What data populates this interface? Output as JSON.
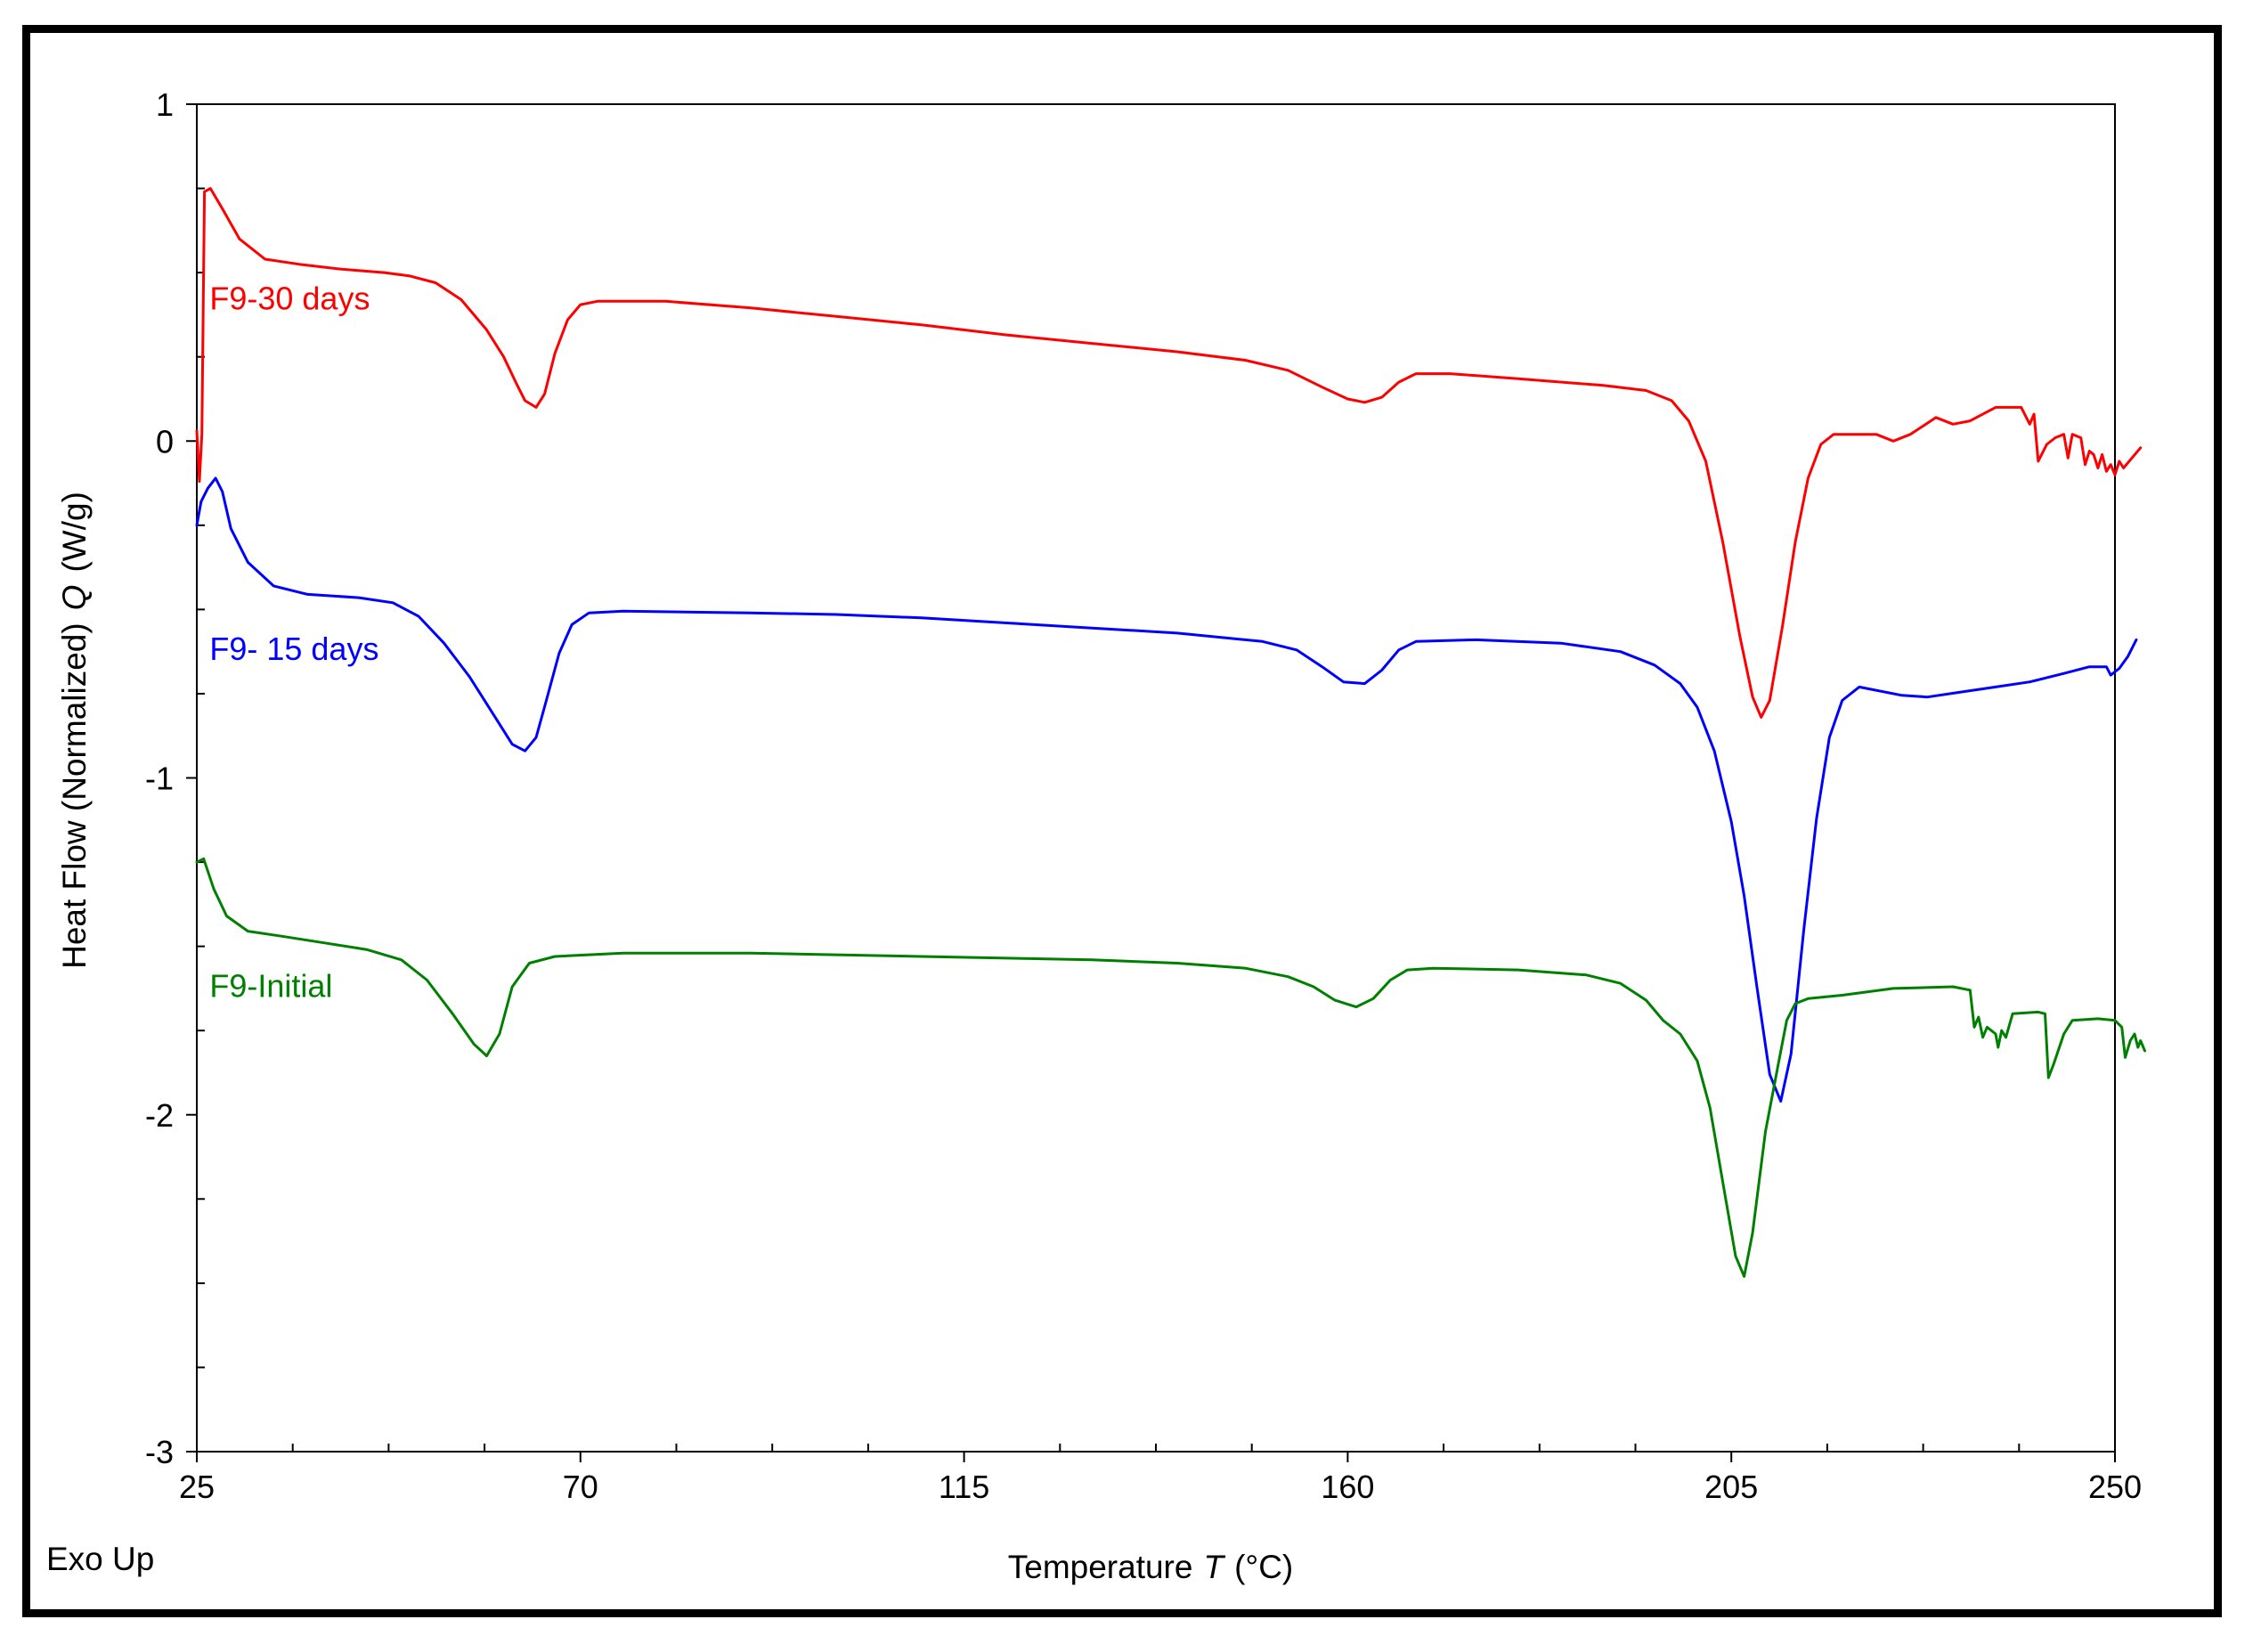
{
  "chart_data": {
    "type": "line",
    "xlabel": "Temperature",
    "xlabel_symbol": "T",
    "xlabel_unit": "(°C)",
    "ylabel": "Heat Flow (Normalized)",
    "ylabel_symbol": "Q",
    "ylabel_unit": "(W/g)",
    "corner_note": "Exo Up",
    "xlim": [
      25,
      250
    ],
    "ylim": [
      -3,
      1
    ],
    "xticks": [
      25,
      70,
      115,
      160,
      205,
      250
    ],
    "xtick_labels": [
      "25",
      "70",
      "115",
      "160",
      "205",
      "250"
    ],
    "yticks": [
      1,
      0,
      -1,
      -2,
      -3
    ],
    "ytick_labels": [
      "1",
      "0",
      "-1",
      "-2",
      "-3"
    ],
    "x_minor_step": 11.25,
    "y_minor_step": 0.25,
    "grid": false,
    "legend": "inline labels at left",
    "series": [
      {
        "name": "F9-30 days",
        "color": "#ff0000",
        "label_anchor": [
          26.5,
          0.39
        ],
        "points": [
          [
            25,
            0.03
          ],
          [
            25.3,
            -0.12
          ],
          [
            25.6,
            0.02
          ],
          [
            25.9,
            0.74
          ],
          [
            26.6,
            0.75
          ],
          [
            28,
            0.69
          ],
          [
            30,
            0.6
          ],
          [
            33,
            0.54
          ],
          [
            37,
            0.525
          ],
          [
            42,
            0.51
          ],
          [
            47,
            0.5
          ],
          [
            50,
            0.49
          ],
          [
            53,
            0.47
          ],
          [
            56,
            0.42
          ],
          [
            59,
            0.33
          ],
          [
            61,
            0.25
          ],
          [
            62.5,
            0.17
          ],
          [
            63.5,
            0.12
          ],
          [
            64.8,
            0.1
          ],
          [
            65.8,
            0.14
          ],
          [
            67,
            0.26
          ],
          [
            68.5,
            0.36
          ],
          [
            70,
            0.405
          ],
          [
            72,
            0.415
          ],
          [
            80,
            0.415
          ],
          [
            90,
            0.395
          ],
          [
            100,
            0.37
          ],
          [
            110,
            0.345
          ],
          [
            120,
            0.315
          ],
          [
            130,
            0.29
          ],
          [
            140,
            0.265
          ],
          [
            148,
            0.24
          ],
          [
            153,
            0.21
          ],
          [
            157,
            0.16
          ],
          [
            160,
            0.125
          ],
          [
            162,
            0.115
          ],
          [
            164,
            0.13
          ],
          [
            166,
            0.175
          ],
          [
            168,
            0.2
          ],
          [
            172,
            0.2
          ],
          [
            180,
            0.185
          ],
          [
            190,
            0.165
          ],
          [
            195,
            0.15
          ],
          [
            198,
            0.12
          ],
          [
            200,
            0.06
          ],
          [
            202,
            -0.06
          ],
          [
            204,
            -0.3
          ],
          [
            206,
            -0.58
          ],
          [
            207.5,
            -0.76
          ],
          [
            208.5,
            -0.82
          ],
          [
            209.5,
            -0.77
          ],
          [
            211,
            -0.55
          ],
          [
            212.5,
            -0.3
          ],
          [
            214,
            -0.11
          ],
          [
            215.5,
            -0.01
          ],
          [
            217,
            0.02
          ],
          [
            222,
            0.02
          ],
          [
            224,
            0.0
          ],
          [
            226,
            0.02
          ],
          [
            229,
            0.07
          ],
          [
            231,
            0.05
          ],
          [
            233,
            0.06
          ],
          [
            236,
            0.1
          ],
          [
            239,
            0.1
          ],
          [
            240,
            0.05
          ],
          [
            240.5,
            0.08
          ],
          [
            241,
            -0.06
          ],
          [
            242,
            -0.01
          ],
          [
            243,
            0.01
          ],
          [
            244,
            0.02
          ],
          [
            244.5,
            -0.05
          ],
          [
            245,
            0.02
          ],
          [
            246,
            0.01
          ],
          [
            246.5,
            -0.07
          ],
          [
            247,
            -0.03
          ],
          [
            247.5,
            -0.04
          ],
          [
            248,
            -0.08
          ],
          [
            248.5,
            -0.04
          ],
          [
            249,
            -0.09
          ],
          [
            249.5,
            -0.07
          ],
          [
            250,
            -0.1
          ],
          [
            250.5,
            -0.06
          ],
          [
            251,
            -0.08
          ],
          [
            252,
            -0.05
          ],
          [
            253,
            -0.02
          ]
        ]
      },
      {
        "name": "F9- 15 days",
        "color": "#0000ff",
        "label_anchor": [
          26.5,
          -0.65
        ],
        "points": [
          [
            25,
            -0.25
          ],
          [
            25.5,
            -0.18
          ],
          [
            26.3,
            -0.14
          ],
          [
            27.2,
            -0.11
          ],
          [
            28,
            -0.15
          ],
          [
            29,
            -0.26
          ],
          [
            31,
            -0.36
          ],
          [
            34,
            -0.43
          ],
          [
            38,
            -0.455
          ],
          [
            44,
            -0.465
          ],
          [
            48,
            -0.48
          ],
          [
            51,
            -0.52
          ],
          [
            54,
            -0.6
          ],
          [
            57,
            -0.7
          ],
          [
            60,
            -0.82
          ],
          [
            62,
            -0.9
          ],
          [
            63.5,
            -0.92
          ],
          [
            64.8,
            -0.88
          ],
          [
            66,
            -0.77
          ],
          [
            67.5,
            -0.63
          ],
          [
            69,
            -0.545
          ],
          [
            71,
            -0.51
          ],
          [
            75,
            -0.505
          ],
          [
            90,
            -0.51
          ],
          [
            100,
            -0.515
          ],
          [
            110,
            -0.525
          ],
          [
            120,
            -0.54
          ],
          [
            130,
            -0.555
          ],
          [
            140,
            -0.57
          ],
          [
            150,
            -0.595
          ],
          [
            154,
            -0.62
          ],
          [
            157,
            -0.67
          ],
          [
            159.5,
            -0.715
          ],
          [
            162,
            -0.72
          ],
          [
            164,
            -0.68
          ],
          [
            166,
            -0.62
          ],
          [
            168,
            -0.595
          ],
          [
            175,
            -0.59
          ],
          [
            185,
            -0.6
          ],
          [
            192,
            -0.625
          ],
          [
            196,
            -0.665
          ],
          [
            199,
            -0.72
          ],
          [
            201,
            -0.79
          ],
          [
            203,
            -0.92
          ],
          [
            205,
            -1.13
          ],
          [
            206.5,
            -1.35
          ],
          [
            208,
            -1.62
          ],
          [
            209.5,
            -1.88
          ],
          [
            210.8,
            -1.96
          ],
          [
            212,
            -1.82
          ],
          [
            213.5,
            -1.45
          ],
          [
            215,
            -1.12
          ],
          [
            216.5,
            -0.88
          ],
          [
            218,
            -0.77
          ],
          [
            220,
            -0.73
          ],
          [
            225,
            -0.755
          ],
          [
            228,
            -0.76
          ],
          [
            232,
            -0.745
          ],
          [
            236,
            -0.73
          ],
          [
            240,
            -0.715
          ],
          [
            244,
            -0.69
          ],
          [
            247,
            -0.67
          ],
          [
            249,
            -0.67
          ],
          [
            249.5,
            -0.695
          ],
          [
            250.5,
            -0.675
          ],
          [
            251.5,
            -0.64
          ],
          [
            252.5,
            -0.59
          ]
        ]
      },
      {
        "name": "F9-Initial",
        "color": "#008000",
        "label_anchor": [
          26.5,
          -1.65
        ],
        "points": [
          [
            25,
            -1.25
          ],
          [
            25.8,
            -1.24
          ],
          [
            27,
            -1.33
          ],
          [
            28.5,
            -1.41
          ],
          [
            31,
            -1.455
          ],
          [
            35,
            -1.47
          ],
          [
            40,
            -1.49
          ],
          [
            45,
            -1.51
          ],
          [
            49,
            -1.54
          ],
          [
            52,
            -1.6
          ],
          [
            55,
            -1.7
          ],
          [
            57.5,
            -1.79
          ],
          [
            59,
            -1.825
          ],
          [
            60.5,
            -1.76
          ],
          [
            62,
            -1.62
          ],
          [
            64,
            -1.55
          ],
          [
            67,
            -1.53
          ],
          [
            75,
            -1.52
          ],
          [
            90,
            -1.52
          ],
          [
            100,
            -1.525
          ],
          [
            110,
            -1.53
          ],
          [
            120,
            -1.535
          ],
          [
            130,
            -1.54
          ],
          [
            140,
            -1.55
          ],
          [
            148,
            -1.565
          ],
          [
            153,
            -1.59
          ],
          [
            156,
            -1.62
          ],
          [
            158.5,
            -1.66
          ],
          [
            161,
            -1.68
          ],
          [
            163,
            -1.655
          ],
          [
            165,
            -1.6
          ],
          [
            167,
            -1.57
          ],
          [
            170,
            -1.565
          ],
          [
            180,
            -1.57
          ],
          [
            188,
            -1.585
          ],
          [
            192,
            -1.61
          ],
          [
            195,
            -1.66
          ],
          [
            197,
            -1.72
          ],
          [
            199,
            -1.76
          ],
          [
            201,
            -1.84
          ],
          [
            202.5,
            -1.98
          ],
          [
            204,
            -2.2
          ],
          [
            205.5,
            -2.42
          ],
          [
            206.5,
            -2.48
          ],
          [
            207.5,
            -2.35
          ],
          [
            209,
            -2.05
          ],
          [
            210.5,
            -1.85
          ],
          [
            211.5,
            -1.72
          ],
          [
            212.5,
            -1.67
          ],
          [
            214,
            -1.655
          ],
          [
            218,
            -1.645
          ],
          [
            224,
            -1.625
          ],
          [
            231,
            -1.62
          ],
          [
            233,
            -1.63
          ],
          [
            233.5,
            -1.74
          ],
          [
            234,
            -1.71
          ],
          [
            234.5,
            -1.77
          ],
          [
            235,
            -1.74
          ],
          [
            236,
            -1.76
          ],
          [
            236.3,
            -1.8
          ],
          [
            236.7,
            -1.75
          ],
          [
            237.2,
            -1.77
          ],
          [
            238,
            -1.7
          ],
          [
            241,
            -1.695
          ],
          [
            241.8,
            -1.7
          ],
          [
            242.2,
            -1.89
          ],
          [
            242.8,
            -1.85
          ],
          [
            244,
            -1.76
          ],
          [
            245,
            -1.72
          ],
          [
            248,
            -1.715
          ],
          [
            250,
            -1.72
          ],
          [
            250.8,
            -1.74
          ],
          [
            251.2,
            -1.83
          ],
          [
            251.8,
            -1.78
          ],
          [
            252.3,
            -1.76
          ],
          [
            252.7,
            -1.8
          ],
          [
            253,
            -1.78
          ],
          [
            253.5,
            -1.81
          ]
        ]
      }
    ]
  }
}
